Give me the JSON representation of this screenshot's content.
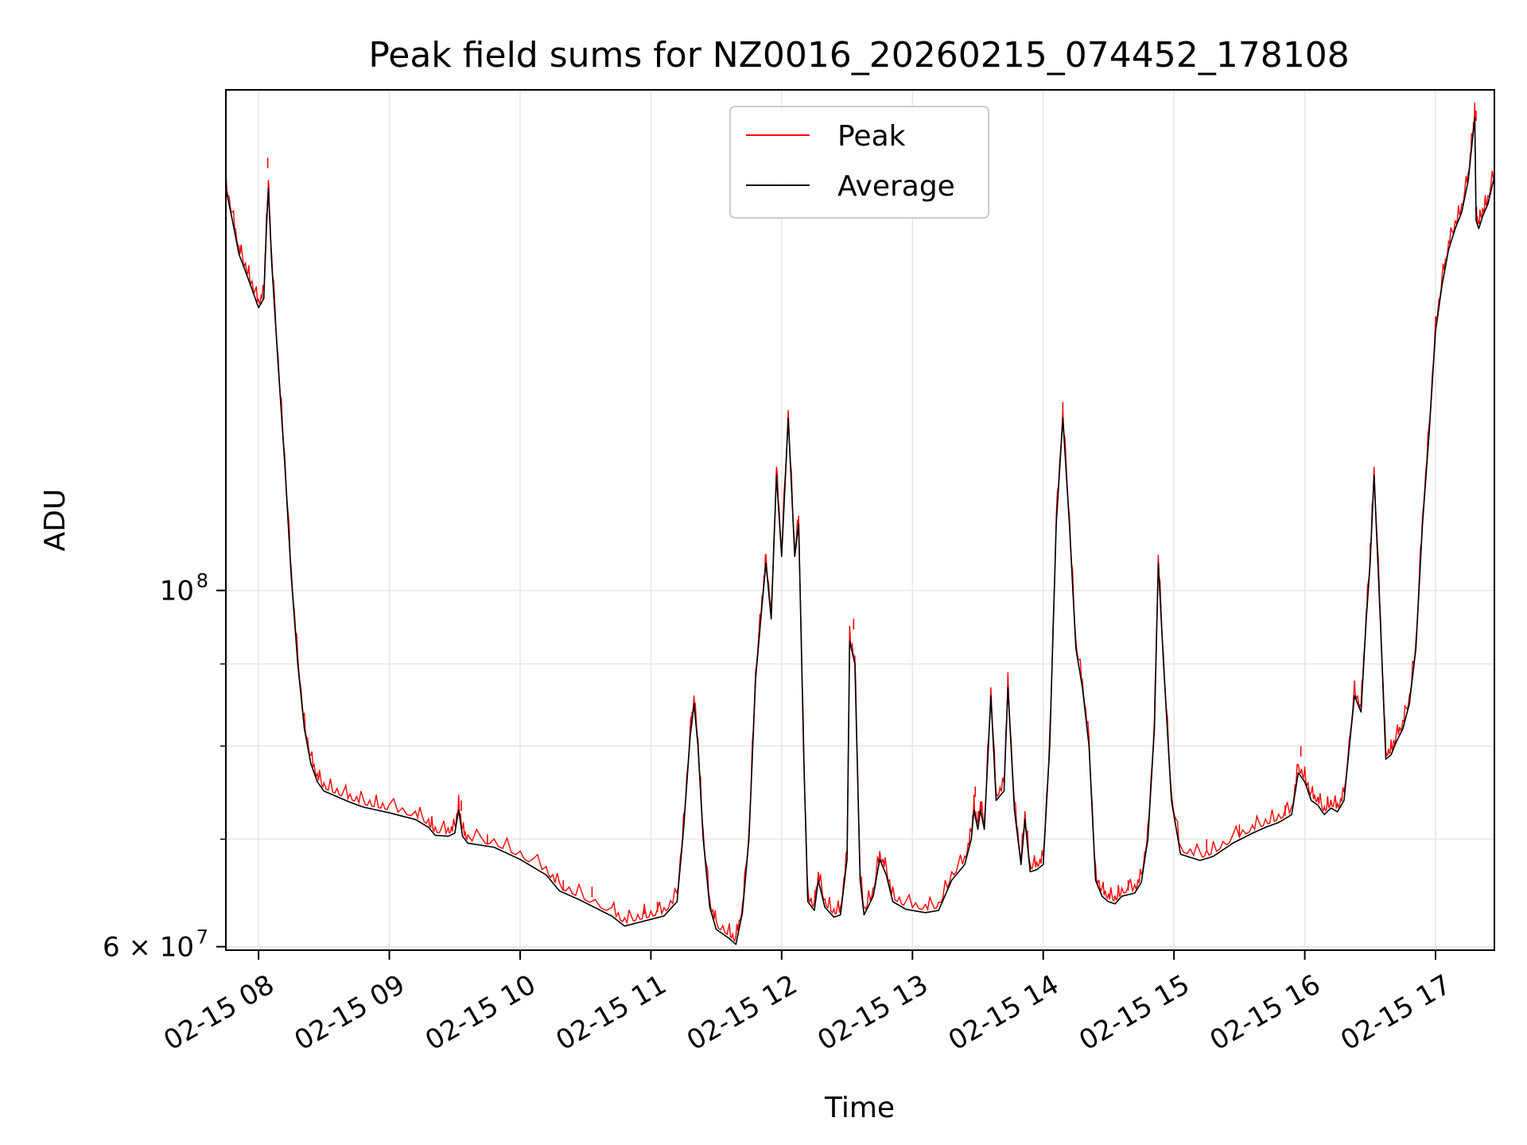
{
  "chart_data": {
    "type": "line",
    "title": "Peak field sums for NZ0016_20260215_074452_178108",
    "xlabel": "Time",
    "ylabel": "ADU",
    "yscale": "log",
    "xlim": [
      7.75,
      17.45
    ],
    "ylim": [
      59700000,
      205000000
    ],
    "grid": true,
    "legend_position": "top-center",
    "x_ticks": [
      {
        "value": 8,
        "label": "02-15 08"
      },
      {
        "value": 9,
        "label": "02-15 09"
      },
      {
        "value": 10,
        "label": "02-15 10"
      },
      {
        "value": 11,
        "label": "02-15 11"
      },
      {
        "value": 12,
        "label": "02-15 12"
      },
      {
        "value": 13,
        "label": "02-15 13"
      },
      {
        "value": 14,
        "label": "02-15 14"
      },
      {
        "value": 15,
        "label": "02-15 15"
      },
      {
        "value": 16,
        "label": "02-15 16"
      },
      {
        "value": 17,
        "label": "02-15 17"
      }
    ],
    "y_major_ticks": [
      {
        "value": 60000000,
        "base": "6 × 10",
        "exp": "7"
      },
      {
        "value": 100000000,
        "base": "10",
        "exp": "8"
      }
    ],
    "y_minor_ticks": [
      70000000,
      80000000,
      90000000
    ],
    "series": [
      {
        "name": "Peak",
        "color": "#ff0000"
      },
      {
        "name": "Average",
        "color": "#000000"
      }
    ],
    "average_points": [
      [
        7.75,
        178000000
      ],
      [
        7.8,
        170000000
      ],
      [
        7.85,
        162000000
      ],
      [
        7.9,
        158000000
      ],
      [
        7.95,
        154000000
      ],
      [
        8.0,
        150000000
      ],
      [
        8.04,
        152000000
      ],
      [
        8.06,
        168000000
      ],
      [
        8.075,
        178000000
      ],
      [
        8.1,
        160000000
      ],
      [
        8.15,
        138000000
      ],
      [
        8.2,
        120000000
      ],
      [
        8.25,
        102000000
      ],
      [
        8.3,
        90000000
      ],
      [
        8.35,
        82000000
      ],
      [
        8.4,
        78000000
      ],
      [
        8.45,
        76000000
      ],
      [
        8.5,
        75000000
      ],
      [
        8.6,
        74400000
      ],
      [
        8.7,
        73800000
      ],
      [
        8.8,
        73300000
      ],
      [
        8.9,
        73000000
      ],
      [
        9.0,
        72700000
      ],
      [
        9.2,
        72000000
      ],
      [
        9.3,
        71200000
      ],
      [
        9.35,
        70400000
      ],
      [
        9.45,
        70300000
      ],
      [
        9.5,
        70600000
      ],
      [
        9.53,
        73000000
      ],
      [
        9.56,
        70300000
      ],
      [
        9.6,
        69600000
      ],
      [
        9.8,
        69200000
      ],
      [
        10.0,
        68000000
      ],
      [
        10.2,
        66500000
      ],
      [
        10.3,
        65000000
      ],
      [
        10.45,
        64200000
      ],
      [
        10.7,
        62700000
      ],
      [
        10.8,
        61800000
      ],
      [
        10.9,
        62100000
      ],
      [
        11.0,
        62400000
      ],
      [
        11.1,
        62700000
      ],
      [
        11.2,
        64000000
      ],
      [
        11.25,
        71000000
      ],
      [
        11.3,
        81000000
      ],
      [
        11.33,
        85000000
      ],
      [
        11.36,
        80000000
      ],
      [
        11.4,
        70000000
      ],
      [
        11.45,
        63500000
      ],
      [
        11.5,
        61500000
      ],
      [
        11.6,
        60700000
      ],
      [
        11.65,
        60200000
      ],
      [
        11.7,
        63000000
      ],
      [
        11.75,
        70000000
      ],
      [
        11.8,
        88000000
      ],
      [
        11.85,
        98000000
      ],
      [
        11.88,
        104000000
      ],
      [
        11.92,
        96000000
      ],
      [
        11.96,
        118000000
      ],
      [
        12.0,
        105000000
      ],
      [
        12.05,
        128000000
      ],
      [
        12.1,
        105000000
      ],
      [
        12.13,
        110000000
      ],
      [
        12.17,
        78000000
      ],
      [
        12.2,
        64000000
      ],
      [
        12.25,
        63200000
      ],
      [
        12.28,
        66000000
      ],
      [
        12.33,
        63500000
      ],
      [
        12.4,
        62600000
      ],
      [
        12.45,
        62800000
      ],
      [
        12.5,
        68000000
      ],
      [
        12.52,
        93000000
      ],
      [
        12.56,
        90000000
      ],
      [
        12.6,
        66000000
      ],
      [
        12.63,
        62800000
      ],
      [
        12.7,
        64500000
      ],
      [
        12.75,
        68000000
      ],
      [
        12.8,
        66500000
      ],
      [
        12.85,
        64000000
      ],
      [
        12.95,
        63300000
      ],
      [
        13.1,
        63000000
      ],
      [
        13.2,
        63200000
      ],
      [
        13.3,
        66000000
      ],
      [
        13.4,
        67500000
      ],
      [
        13.45,
        70000000
      ],
      [
        13.47,
        73000000
      ],
      [
        13.5,
        71000000
      ],
      [
        13.52,
        73000000
      ],
      [
        13.55,
        71000000
      ],
      [
        13.6,
        86000000
      ],
      [
        13.64,
        74000000
      ],
      [
        13.7,
        75000000
      ],
      [
        13.73,
        87000000
      ],
      [
        13.78,
        73000000
      ],
      [
        13.83,
        67500000
      ],
      [
        13.86,
        72000000
      ],
      [
        13.9,
        66800000
      ],
      [
        13.95,
        67000000
      ],
      [
        14.0,
        67500000
      ],
      [
        14.05,
        80000000
      ],
      [
        14.1,
        110000000
      ],
      [
        14.15,
        128000000
      ],
      [
        14.2,
        110000000
      ],
      [
        14.25,
        92000000
      ],
      [
        14.3,
        87000000
      ],
      [
        14.35,
        80000000
      ],
      [
        14.4,
        66000000
      ],
      [
        14.45,
        64500000
      ],
      [
        14.5,
        64000000
      ],
      [
        14.55,
        63800000
      ],
      [
        14.6,
        64500000
      ],
      [
        14.7,
        64800000
      ],
      [
        14.75,
        65800000
      ],
      [
        14.8,
        70000000
      ],
      [
        14.85,
        82000000
      ],
      [
        14.88,
        104000000
      ],
      [
        14.92,
        90000000
      ],
      [
        14.98,
        74000000
      ],
      [
        15.05,
        68500000
      ],
      [
        15.2,
        67900000
      ],
      [
        15.3,
        68300000
      ],
      [
        15.45,
        69600000
      ],
      [
        15.6,
        70600000
      ],
      [
        15.7,
        71200000
      ],
      [
        15.8,
        71700000
      ],
      [
        15.9,
        72500000
      ],
      [
        15.95,
        77000000
      ],
      [
        16.0,
        76000000
      ],
      [
        16.05,
        74000000
      ],
      [
        16.1,
        73500000
      ],
      [
        16.15,
        72500000
      ],
      [
        16.2,
        73200000
      ],
      [
        16.25,
        72800000
      ],
      [
        16.3,
        74000000
      ],
      [
        16.38,
        86000000
      ],
      [
        16.43,
        84000000
      ],
      [
        16.47,
        96000000
      ],
      [
        16.5,
        104000000
      ],
      [
        16.53,
        118000000
      ],
      [
        16.58,
        95000000
      ],
      [
        16.62,
        78500000
      ],
      [
        16.66,
        79000000
      ],
      [
        16.7,
        80500000
      ],
      [
        16.75,
        82000000
      ],
      [
        16.8,
        85000000
      ],
      [
        16.85,
        92000000
      ],
      [
        16.9,
        110000000
      ],
      [
        16.95,
        125000000
      ],
      [
        17.0,
        145000000
      ],
      [
        17.05,
        155000000
      ],
      [
        17.1,
        163000000
      ],
      [
        17.15,
        168000000
      ],
      [
        17.2,
        172000000
      ],
      [
        17.25,
        180000000
      ],
      [
        17.28,
        190000000
      ],
      [
        17.3,
        197000000
      ],
      [
        17.31,
        170000000
      ],
      [
        17.33,
        168000000
      ],
      [
        17.36,
        171000000
      ],
      [
        17.4,
        174000000
      ],
      [
        17.45,
        181000000
      ]
    ],
    "peak_spikes": [
      [
        8.07,
        186000000
      ],
      [
        9.55,
        74000000
      ],
      [
        9.75,
        70500000
      ],
      [
        10.33,
        66000000
      ],
      [
        10.55,
        65400000
      ],
      [
        10.95,
        63800000
      ],
      [
        11.05,
        64000000
      ],
      [
        12.55,
        96000000
      ],
      [
        13.48,
        75500000
      ],
      [
        14.15,
        131000000
      ],
      [
        14.65,
        66000000
      ],
      [
        15.25,
        70000000
      ],
      [
        15.5,
        71500000
      ],
      [
        15.85,
        73500000
      ],
      [
        15.97,
        80000000
      ],
      [
        16.5,
        107000000
      ],
      [
        17.31,
        199000000
      ]
    ]
  }
}
